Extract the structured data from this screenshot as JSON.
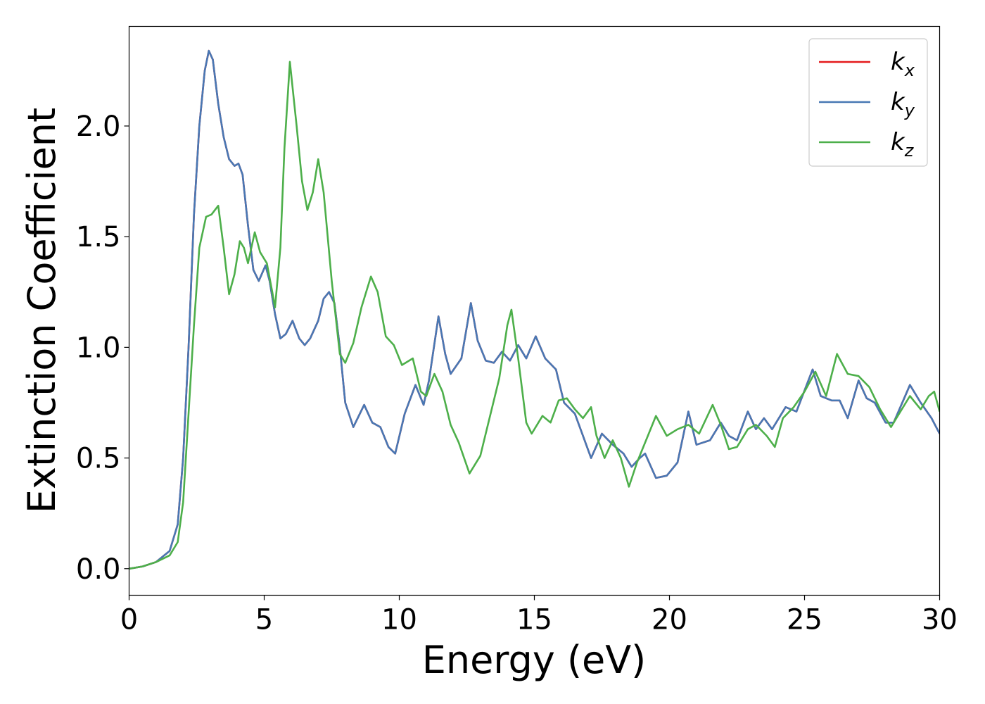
{
  "chart_data": {
    "type": "line",
    "title": "",
    "xlabel": "Energy (eV)",
    "ylabel": "Extinction Coefficient",
    "xlim": [
      0,
      30
    ],
    "ylim": [
      -0.12,
      2.45
    ],
    "xticks": [
      0,
      5,
      10,
      15,
      20,
      25,
      30
    ],
    "xtick_labels": [
      "0",
      "5",
      "10",
      "15",
      "20",
      "25",
      "30"
    ],
    "yticks": [
      0.0,
      0.5,
      1.0,
      1.5,
      2.0
    ],
    "ytick_labels": [
      "0.0",
      "0.5",
      "1.0",
      "1.5",
      "2.0"
    ],
    "grid": false,
    "legend_position": "top-right",
    "series": [
      {
        "name": "k",
        "subscript": "x",
        "color": "#e41a1c",
        "points": [
          [
            0,
            0
          ],
          [
            0.5,
            0.01
          ],
          [
            1.0,
            0.03
          ],
          [
            1.5,
            0.08
          ],
          [
            1.8,
            0.2
          ],
          [
            2.0,
            0.5
          ],
          [
            2.2,
            1.0
          ],
          [
            2.4,
            1.6
          ],
          [
            2.6,
            2.0
          ],
          [
            2.8,
            2.25
          ],
          [
            2.95,
            2.34
          ],
          [
            3.1,
            2.3
          ],
          [
            3.3,
            2.1
          ],
          [
            3.5,
            1.95
          ],
          [
            3.7,
            1.85
          ],
          [
            3.9,
            1.82
          ],
          [
            4.05,
            1.83
          ],
          [
            4.2,
            1.78
          ],
          [
            4.4,
            1.55
          ],
          [
            4.6,
            1.35
          ],
          [
            4.8,
            1.3
          ],
          [
            5.05,
            1.37
          ],
          [
            5.2,
            1.3
          ],
          [
            5.4,
            1.15
          ],
          [
            5.6,
            1.04
          ],
          [
            5.8,
            1.06
          ],
          [
            6.05,
            1.12
          ],
          [
            6.3,
            1.04
          ],
          [
            6.5,
            1.01
          ],
          [
            6.7,
            1.04
          ],
          [
            7.0,
            1.12
          ],
          [
            7.2,
            1.22
          ],
          [
            7.4,
            1.25
          ],
          [
            7.6,
            1.2
          ],
          [
            7.8,
            1.0
          ],
          [
            8.0,
            0.75
          ],
          [
            8.3,
            0.64
          ],
          [
            8.7,
            0.74
          ],
          [
            9.0,
            0.66
          ],
          [
            9.3,
            0.64
          ],
          [
            9.6,
            0.55
          ],
          [
            9.85,
            0.52
          ],
          [
            10.2,
            0.7
          ],
          [
            10.6,
            0.83
          ],
          [
            10.9,
            0.74
          ],
          [
            11.1,
            0.85
          ],
          [
            11.45,
            1.14
          ],
          [
            11.7,
            0.97
          ],
          [
            11.9,
            0.88
          ],
          [
            12.3,
            0.95
          ],
          [
            12.65,
            1.2
          ],
          [
            12.9,
            1.03
          ],
          [
            13.2,
            0.94
          ],
          [
            13.5,
            0.93
          ],
          [
            13.8,
            0.98
          ],
          [
            14.1,
            0.94
          ],
          [
            14.4,
            1.01
          ],
          [
            14.7,
            0.95
          ],
          [
            15.05,
            1.05
          ],
          [
            15.4,
            0.95
          ],
          [
            15.8,
            0.9
          ],
          [
            16.1,
            0.75
          ],
          [
            16.5,
            0.7
          ],
          [
            16.8,
            0.6
          ],
          [
            17.1,
            0.5
          ],
          [
            17.5,
            0.61
          ],
          [
            17.9,
            0.56
          ],
          [
            18.3,
            0.52
          ],
          [
            18.6,
            0.46
          ],
          [
            18.9,
            0.5
          ],
          [
            19.1,
            0.52
          ],
          [
            19.5,
            0.41
          ],
          [
            19.9,
            0.42
          ],
          [
            20.3,
            0.48
          ],
          [
            20.7,
            0.71
          ],
          [
            21.0,
            0.56
          ],
          [
            21.5,
            0.58
          ],
          [
            21.9,
            0.66
          ],
          [
            22.2,
            0.6
          ],
          [
            22.5,
            0.58
          ],
          [
            22.9,
            0.71
          ],
          [
            23.2,
            0.63
          ],
          [
            23.5,
            0.68
          ],
          [
            23.8,
            0.63
          ],
          [
            24.3,
            0.73
          ],
          [
            24.7,
            0.71
          ],
          [
            25.3,
            0.9
          ],
          [
            25.6,
            0.78
          ],
          [
            26.0,
            0.76
          ],
          [
            26.3,
            0.76
          ],
          [
            26.6,
            0.68
          ],
          [
            27.0,
            0.85
          ],
          [
            27.3,
            0.77
          ],
          [
            27.6,
            0.75
          ],
          [
            28.0,
            0.66
          ],
          [
            28.3,
            0.66
          ],
          [
            28.9,
            0.83
          ],
          [
            29.3,
            0.75
          ],
          [
            29.7,
            0.68
          ],
          [
            30.0,
            0.61
          ]
        ]
      },
      {
        "name": "k",
        "subscript": "y",
        "color": "#4878b4",
        "points": [
          [
            0,
            0
          ],
          [
            0.5,
            0.01
          ],
          [
            1.0,
            0.03
          ],
          [
            1.5,
            0.08
          ],
          [
            1.8,
            0.2
          ],
          [
            2.0,
            0.5
          ],
          [
            2.2,
            1.0
          ],
          [
            2.4,
            1.6
          ],
          [
            2.6,
            2.0
          ],
          [
            2.8,
            2.25
          ],
          [
            2.95,
            2.34
          ],
          [
            3.1,
            2.3
          ],
          [
            3.3,
            2.1
          ],
          [
            3.5,
            1.95
          ],
          [
            3.7,
            1.85
          ],
          [
            3.9,
            1.82
          ],
          [
            4.05,
            1.83
          ],
          [
            4.2,
            1.78
          ],
          [
            4.4,
            1.55
          ],
          [
            4.6,
            1.35
          ],
          [
            4.8,
            1.3
          ],
          [
            5.05,
            1.37
          ],
          [
            5.2,
            1.3
          ],
          [
            5.4,
            1.15
          ],
          [
            5.6,
            1.04
          ],
          [
            5.8,
            1.06
          ],
          [
            6.05,
            1.12
          ],
          [
            6.3,
            1.04
          ],
          [
            6.5,
            1.01
          ],
          [
            6.7,
            1.04
          ],
          [
            7.0,
            1.12
          ],
          [
            7.2,
            1.22
          ],
          [
            7.4,
            1.25
          ],
          [
            7.6,
            1.2
          ],
          [
            7.8,
            1.0
          ],
          [
            8.0,
            0.75
          ],
          [
            8.3,
            0.64
          ],
          [
            8.7,
            0.74
          ],
          [
            9.0,
            0.66
          ],
          [
            9.3,
            0.64
          ],
          [
            9.6,
            0.55
          ],
          [
            9.85,
            0.52
          ],
          [
            10.2,
            0.7
          ],
          [
            10.6,
            0.83
          ],
          [
            10.9,
            0.74
          ],
          [
            11.1,
            0.85
          ],
          [
            11.45,
            1.14
          ],
          [
            11.7,
            0.97
          ],
          [
            11.9,
            0.88
          ],
          [
            12.3,
            0.95
          ],
          [
            12.65,
            1.2
          ],
          [
            12.9,
            1.03
          ],
          [
            13.2,
            0.94
          ],
          [
            13.5,
            0.93
          ],
          [
            13.8,
            0.98
          ],
          [
            14.1,
            0.94
          ],
          [
            14.4,
            1.01
          ],
          [
            14.7,
            0.95
          ],
          [
            15.05,
            1.05
          ],
          [
            15.4,
            0.95
          ],
          [
            15.8,
            0.9
          ],
          [
            16.1,
            0.75
          ],
          [
            16.5,
            0.7
          ],
          [
            16.8,
            0.6
          ],
          [
            17.1,
            0.5
          ],
          [
            17.5,
            0.61
          ],
          [
            17.9,
            0.56
          ],
          [
            18.3,
            0.52
          ],
          [
            18.6,
            0.46
          ],
          [
            18.9,
            0.5
          ],
          [
            19.1,
            0.52
          ],
          [
            19.5,
            0.41
          ],
          [
            19.9,
            0.42
          ],
          [
            20.3,
            0.48
          ],
          [
            20.7,
            0.71
          ],
          [
            21.0,
            0.56
          ],
          [
            21.5,
            0.58
          ],
          [
            21.9,
            0.66
          ],
          [
            22.2,
            0.6
          ],
          [
            22.5,
            0.58
          ],
          [
            22.9,
            0.71
          ],
          [
            23.2,
            0.63
          ],
          [
            23.5,
            0.68
          ],
          [
            23.8,
            0.63
          ],
          [
            24.3,
            0.73
          ],
          [
            24.7,
            0.71
          ],
          [
            25.3,
            0.9
          ],
          [
            25.6,
            0.78
          ],
          [
            26.0,
            0.76
          ],
          [
            26.3,
            0.76
          ],
          [
            26.6,
            0.68
          ],
          [
            27.0,
            0.85
          ],
          [
            27.3,
            0.77
          ],
          [
            27.6,
            0.75
          ],
          [
            28.0,
            0.66
          ],
          [
            28.3,
            0.66
          ],
          [
            28.9,
            0.83
          ],
          [
            29.3,
            0.75
          ],
          [
            29.7,
            0.68
          ],
          [
            30.0,
            0.61
          ]
        ]
      },
      {
        "name": "k",
        "subscript": "z",
        "color": "#4daf4a",
        "points": [
          [
            0,
            0
          ],
          [
            0.5,
            0.01
          ],
          [
            1.0,
            0.03
          ],
          [
            1.5,
            0.06
          ],
          [
            1.8,
            0.12
          ],
          [
            2.0,
            0.3
          ],
          [
            2.2,
            0.7
          ],
          [
            2.4,
            1.1
          ],
          [
            2.6,
            1.45
          ],
          [
            2.85,
            1.59
          ],
          [
            3.05,
            1.6
          ],
          [
            3.3,
            1.64
          ],
          [
            3.5,
            1.45
          ],
          [
            3.7,
            1.24
          ],
          [
            3.9,
            1.33
          ],
          [
            4.1,
            1.48
          ],
          [
            4.25,
            1.45
          ],
          [
            4.4,
            1.38
          ],
          [
            4.65,
            1.52
          ],
          [
            4.85,
            1.43
          ],
          [
            5.1,
            1.38
          ],
          [
            5.3,
            1.25
          ],
          [
            5.4,
            1.18
          ],
          [
            5.6,
            1.45
          ],
          [
            5.75,
            1.9
          ],
          [
            5.95,
            2.29
          ],
          [
            6.2,
            2.0
          ],
          [
            6.4,
            1.75
          ],
          [
            6.6,
            1.62
          ],
          [
            6.8,
            1.7
          ],
          [
            7.0,
            1.85
          ],
          [
            7.2,
            1.7
          ],
          [
            7.5,
            1.3
          ],
          [
            7.8,
            0.97
          ],
          [
            8.0,
            0.93
          ],
          [
            8.3,
            1.02
          ],
          [
            8.6,
            1.18
          ],
          [
            8.95,
            1.32
          ],
          [
            9.2,
            1.25
          ],
          [
            9.5,
            1.05
          ],
          [
            9.8,
            1.01
          ],
          [
            10.1,
            0.92
          ],
          [
            10.5,
            0.95
          ],
          [
            10.8,
            0.8
          ],
          [
            11.0,
            0.78
          ],
          [
            11.3,
            0.88
          ],
          [
            11.6,
            0.8
          ],
          [
            11.9,
            0.65
          ],
          [
            12.2,
            0.57
          ],
          [
            12.6,
            0.43
          ],
          [
            13.0,
            0.51
          ],
          [
            13.3,
            0.66
          ],
          [
            13.7,
            0.86
          ],
          [
            14.0,
            1.1
          ],
          [
            14.15,
            1.17
          ],
          [
            14.4,
            0.95
          ],
          [
            14.7,
            0.66
          ],
          [
            14.9,
            0.61
          ],
          [
            15.3,
            0.69
          ],
          [
            15.6,
            0.66
          ],
          [
            15.9,
            0.76
          ],
          [
            16.2,
            0.77
          ],
          [
            16.5,
            0.72
          ],
          [
            16.8,
            0.68
          ],
          [
            17.1,
            0.73
          ],
          [
            17.3,
            0.6
          ],
          [
            17.6,
            0.5
          ],
          [
            17.9,
            0.58
          ],
          [
            18.2,
            0.5
          ],
          [
            18.5,
            0.37
          ],
          [
            18.8,
            0.48
          ],
          [
            19.2,
            0.6
          ],
          [
            19.5,
            0.69
          ],
          [
            19.9,
            0.6
          ],
          [
            20.3,
            0.63
          ],
          [
            20.7,
            0.65
          ],
          [
            21.1,
            0.61
          ],
          [
            21.6,
            0.74
          ],
          [
            21.9,
            0.65
          ],
          [
            22.2,
            0.54
          ],
          [
            22.5,
            0.55
          ],
          [
            22.9,
            0.63
          ],
          [
            23.2,
            0.65
          ],
          [
            23.6,
            0.6
          ],
          [
            23.9,
            0.55
          ],
          [
            24.2,
            0.68
          ],
          [
            24.6,
            0.73
          ],
          [
            25.0,
            0.8
          ],
          [
            25.4,
            0.89
          ],
          [
            25.8,
            0.78
          ],
          [
            26.2,
            0.97
          ],
          [
            26.6,
            0.88
          ],
          [
            27.0,
            0.87
          ],
          [
            27.4,
            0.82
          ],
          [
            27.8,
            0.72
          ],
          [
            28.2,
            0.64
          ],
          [
            28.5,
            0.7
          ],
          [
            28.9,
            0.78
          ],
          [
            29.3,
            0.72
          ],
          [
            29.6,
            0.78
          ],
          [
            29.8,
            0.8
          ],
          [
            30.0,
            0.71
          ]
        ]
      }
    ]
  }
}
